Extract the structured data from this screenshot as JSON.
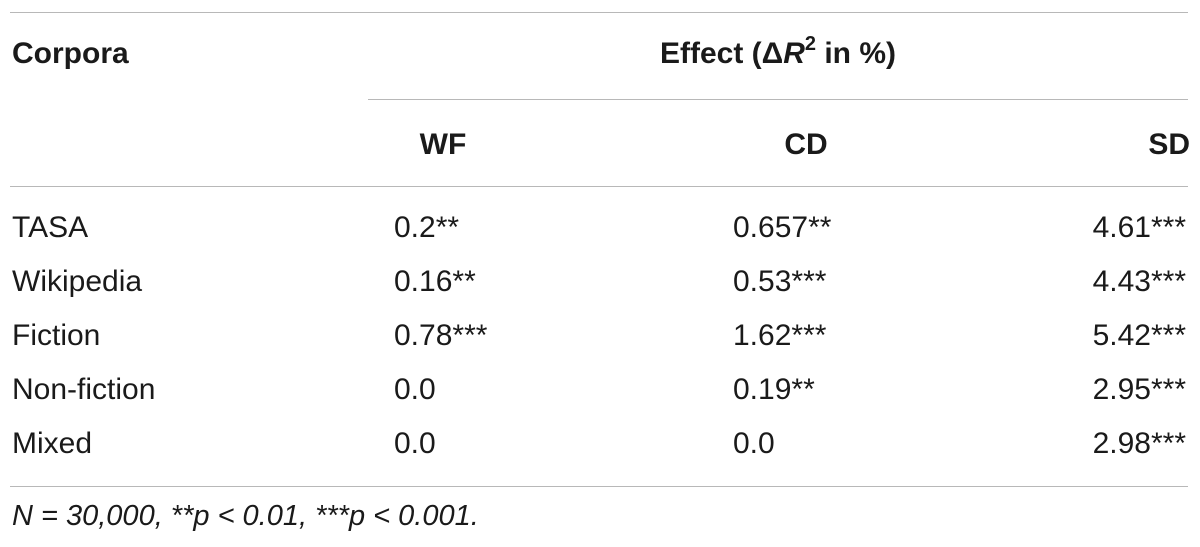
{
  "header": {
    "corpora_label": "Corpora",
    "effect_prefix": "Effect (Δ",
    "effect_var": "R",
    "effect_sup": "2",
    "effect_suffix": " in %)",
    "columns": [
      "WF",
      "CD",
      "SD"
    ]
  },
  "rows": [
    {
      "name": "TASA",
      "wf": "0.2**",
      "cd": "0.657**",
      "sd": "4.61***"
    },
    {
      "name": "Wikipedia",
      "wf": "0.16**",
      "cd": "0.53***",
      "sd": "4.43***"
    },
    {
      "name": "Fiction",
      "wf": "0.78***",
      "cd": "1.62***",
      "sd": "5.42***"
    },
    {
      "name": "Non-fiction",
      "wf": "0.0",
      "cd": "0.19**",
      "sd": "2.95***"
    },
    {
      "name": "Mixed",
      "wf": "0.0",
      "cd": "0.0",
      "sd": "2.98***"
    }
  ],
  "footnote": "N = 30,000, **p < 0.01, ***p < 0.001."
}
